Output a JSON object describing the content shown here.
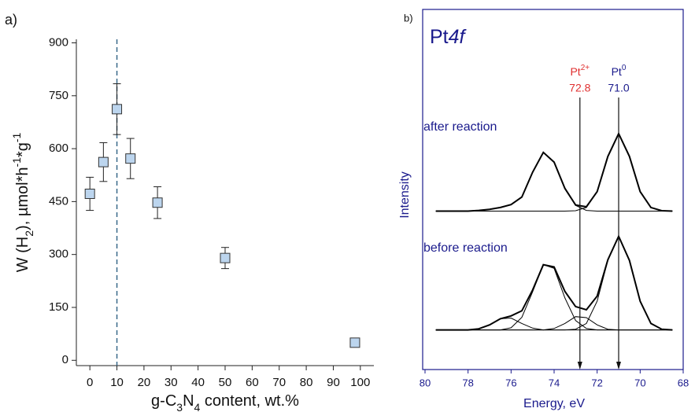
{
  "chart_data": [
    {
      "type": "scatter",
      "panel_label": "a)",
      "xlabel": [
        {
          "text": "g-C"
        },
        {
          "text": "3",
          "sub": true
        },
        {
          "text": "N"
        },
        {
          "text": "4",
          "sub": true
        },
        {
          "text": " content, wt.%"
        }
      ],
      "ylabel": [
        {
          "text": "W (H"
        },
        {
          "text": "2",
          "sub": true
        },
        {
          "text": "), µmol*h"
        },
        {
          "text": "-1",
          "sup": true
        },
        {
          "text": "*g"
        },
        {
          "text": "-1",
          "sup": true
        }
      ],
      "x": [
        0,
        5,
        10,
        15,
        25,
        50,
        98
      ],
      "series": [
        {
          "color": "#bcd5ee",
          "values": [
            472,
            562,
            712,
            572,
            447,
            290,
            50
          ],
          "errors": [
            47,
            55,
            72,
            57,
            45,
            30,
            12
          ]
        }
      ],
      "xlim": [
        -5,
        105
      ],
      "ylim": [
        -15,
        910
      ],
      "xticks": [
        0,
        10,
        20,
        30,
        40,
        50,
        60,
        70,
        80,
        90,
        100
      ],
      "yticks": [
        0,
        150,
        300,
        450,
        600,
        750,
        900
      ],
      "vline": {
        "x": 10,
        "color": "#3a6a8a"
      }
    },
    {
      "type": "line",
      "panel_label": "b)",
      "title": [
        {
          "text": "Pt"
        },
        {
          "text": "4f",
          "italic": true
        }
      ],
      "xlabel": "Energy, eV",
      "ylabel": "Intensity",
      "xlim": [
        80,
        68
      ],
      "xticks": [
        80,
        78,
        76,
        74,
        72,
        70,
        68
      ],
      "ylim": [
        0,
        100
      ],
      "annotations": [
        {
          "text": "after reaction"
        },
        {
          "text": "before reaction"
        }
      ],
      "markers": [
        {
          "x": 72.8,
          "label": "Pt",
          "sup": "2+",
          "value_label": "72.8",
          "color": "#e03030"
        },
        {
          "x": 71.0,
          "label": "Pt",
          "sup": "0",
          "value_label": "71.0",
          "color": "#1a1a8c"
        }
      ],
      "x": [
        79.5,
        79,
        78.5,
        78,
        77.5,
        77,
        76.5,
        76,
        75.5,
        75,
        74.5,
        74,
        73.5,
        73,
        72.5,
        72,
        71.5,
        71,
        70.5,
        70,
        69.5,
        69,
        68.5
      ],
      "series": [
        {
          "color": "#000000",
          "width": 2,
          "values": [
            44,
            44,
            44,
            44,
            44.2,
            44.5,
            45,
            45.8,
            47.9,
            54.8,
            60.3,
            57.6,
            50.3,
            45.7,
            45.2,
            49.4,
            59.2,
            65.5,
            59.2,
            49.4,
            45,
            44.1,
            44
          ]
        },
        {
          "color": "#000000",
          "width": 1,
          "values": [
            44,
            44,
            44,
            44,
            44.2,
            44.5,
            45,
            45.8,
            47.9,
            54.8,
            60.3,
            57.6,
            50.3,
            45.6,
            44.2,
            44,
            44,
            44,
            44,
            44,
            44,
            44,
            44
          ]
        },
        {
          "color": "#000000",
          "width": 1,
          "values": [
            44,
            44,
            44,
            44,
            44,
            44,
            44,
            44,
            44,
            44,
            44,
            44,
            44,
            44.1,
            45,
            49.4,
            59.2,
            65.5,
            59.2,
            49.4,
            45,
            44.1,
            44
          ]
        },
        {
          "color": "#000000",
          "width": 2,
          "values": [
            11,
            11,
            11,
            11,
            11.3,
            12.4,
            14.1,
            14.9,
            16.3,
            22.1,
            29.1,
            28.5,
            21.7,
            17.5,
            16.6,
            20.4,
            30.5,
            37,
            30.3,
            19,
            12.8,
            11.2,
            11
          ]
        },
        {
          "color": "#000000",
          "width": 1,
          "values": [
            11,
            11,
            11,
            11,
            11,
            11,
            11,
            11.6,
            14.5,
            21.6,
            29.1,
            28.1,
            19.9,
            13.6,
            11.4,
            11,
            11,
            11,
            11,
            11,
            11,
            11,
            11
          ]
        },
        {
          "color": "#000000",
          "width": 1,
          "values": [
            11,
            11,
            11,
            11,
            11.3,
            12.4,
            14.1,
            14.3,
            12.8,
            11.5,
            11,
            11,
            11,
            11,
            11,
            11,
            11,
            11,
            11,
            11,
            11,
            11,
            11
          ]
        },
        {
          "color": "#000000",
          "width": 1,
          "values": [
            11,
            11,
            11,
            11,
            11,
            11,
            11,
            11,
            11,
            11,
            11,
            11.4,
            12.8,
            14.7,
            14.4,
            12.4,
            11.2,
            11,
            11,
            11,
            11,
            11,
            11
          ]
        },
        {
          "color": "#000000",
          "width": 1,
          "values": [
            11,
            11,
            11,
            11,
            11,
            11,
            11,
            11,
            11,
            11,
            11,
            11,
            11,
            11.2,
            12.8,
            19,
            30.3,
            37,
            30.3,
            19,
            12.8,
            11.2,
            11
          ]
        }
      ]
    }
  ]
}
